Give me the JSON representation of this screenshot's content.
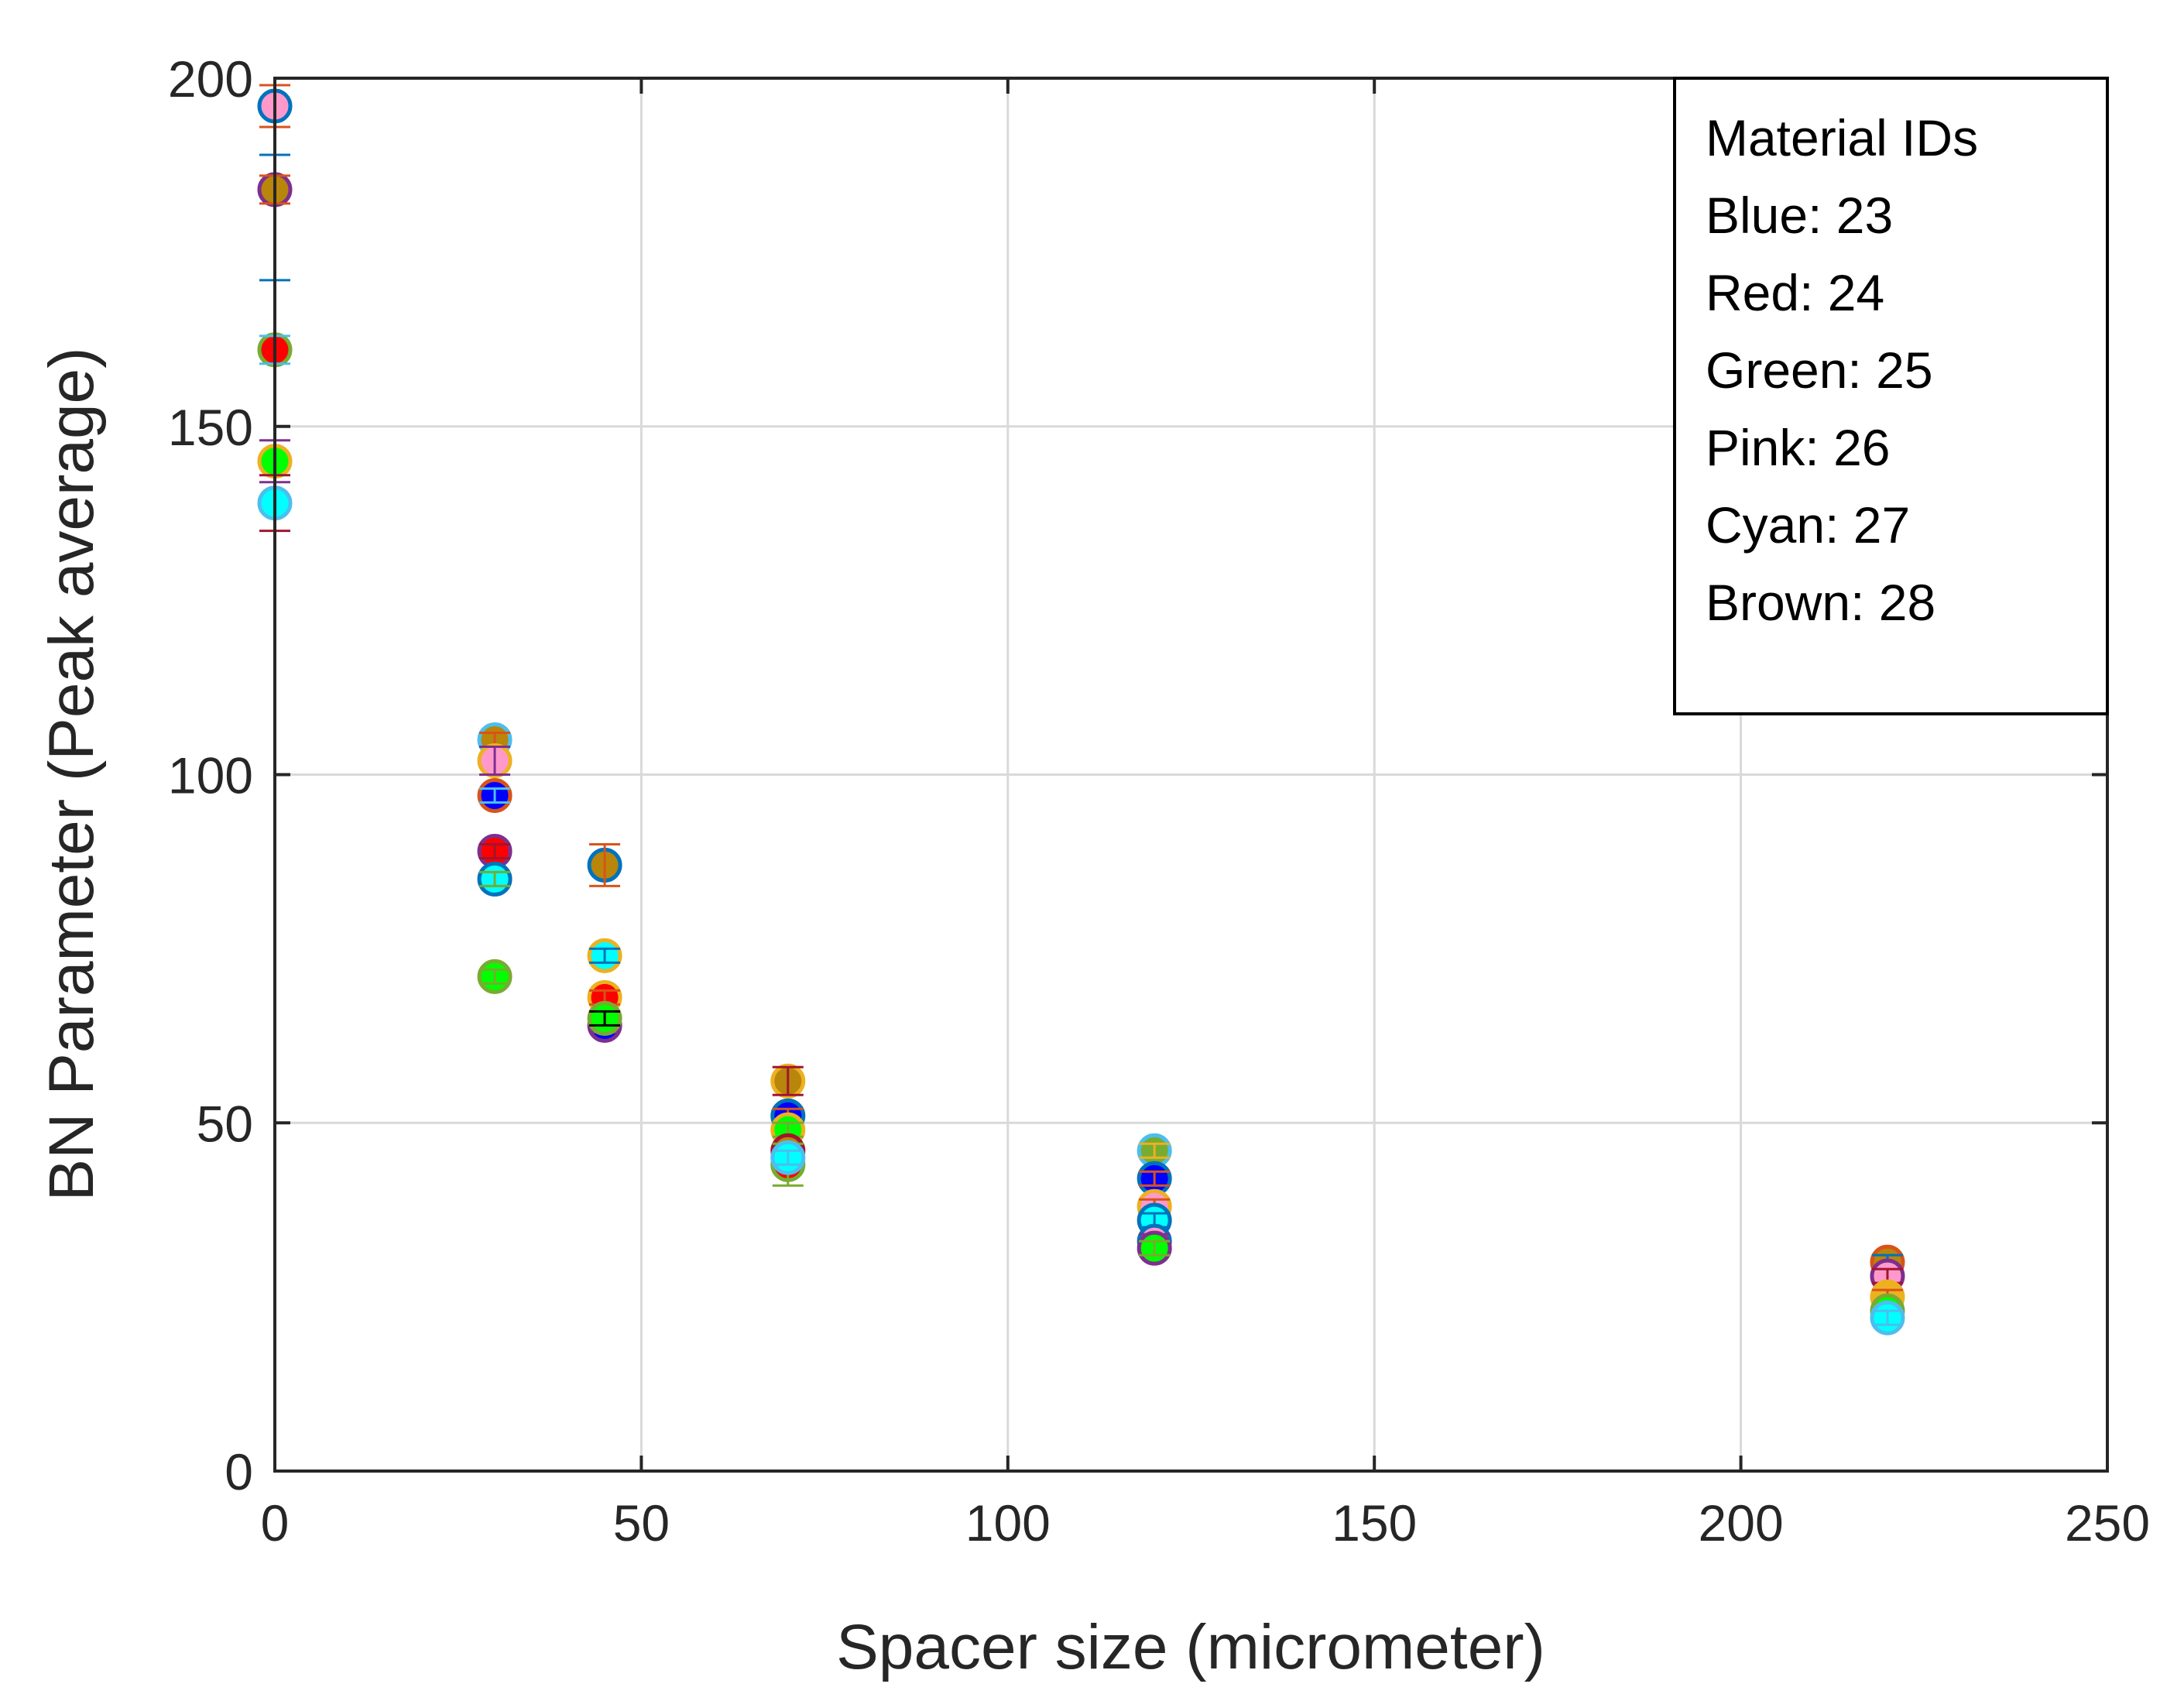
{
  "chart_data": {
    "type": "scatter",
    "title": "",
    "xlabel": "Spacer size (micrometer)",
    "ylabel": "BN Parameter (Peak average)",
    "xlim": [
      0,
      250
    ],
    "ylim": [
      0,
      200
    ],
    "xticks": [
      0,
      50,
      100,
      150,
      200,
      250
    ],
    "yticks": [
      0,
      50,
      100,
      150,
      200
    ],
    "xtick_labels": [
      "0",
      "50",
      "100",
      "150",
      "200",
      "250"
    ],
    "ytick_labels": [
      "0",
      "50",
      "100",
      "150",
      "200"
    ],
    "grid": true,
    "legend_box": {
      "position": "top-right",
      "lines": [
        "Material IDs",
        "Blue: 23",
        "Red: 24",
        "Green: 25",
        "Pink: 26",
        "Cyan: 27",
        "Brown: 28"
      ]
    },
    "points": [
      {
        "x": 0,
        "y": 196,
        "err": 3,
        "fill": "#ff99cc",
        "edge": "#0072bd",
        "bar": "#d95319"
      },
      {
        "x": 0,
        "y": 184,
        "err": 2,
        "fill": "#b8860b",
        "edge": "#7e2f8e",
        "bar": "#d95319"
      },
      {
        "x": 0,
        "y": 180,
        "err": 9,
        "fill": "none",
        "edge": "none",
        "bar": "#0072bd"
      },
      {
        "x": 0,
        "y": 161,
        "err": 2,
        "fill": "#ff0000",
        "edge": "#77ac30",
        "bar": "#4dbeee"
      },
      {
        "x": 0,
        "y": 145,
        "err": 3,
        "fill": "#00ff00",
        "edge": "#edb120",
        "bar": "#7e2f8e"
      },
      {
        "x": 0,
        "y": 139,
        "err": 4,
        "fill": "#00ffff",
        "edge": "#4dbeee",
        "bar": "#a2142f"
      },
      {
        "x": 30,
        "y": 105,
        "err": 1,
        "fill": "#b8860b",
        "edge": "#4dbeee",
        "bar": "#d95319"
      },
      {
        "x": 30,
        "y": 102,
        "err": 2,
        "fill": "#ff99cc",
        "edge": "#edb120",
        "bar": "#7e2f8e"
      },
      {
        "x": 30,
        "y": 97,
        "err": 1,
        "fill": "#0000ff",
        "edge": "#d95319",
        "bar": "#4dbeee"
      },
      {
        "x": 30,
        "y": 89,
        "err": 1,
        "fill": "#ff0000",
        "edge": "#7e2f8e",
        "bar": "#a2142f"
      },
      {
        "x": 30,
        "y": 85,
        "err": 1,
        "fill": "#00ffff",
        "edge": "#0072bd",
        "bar": "#77ac30"
      },
      {
        "x": 30,
        "y": 71,
        "err": 1,
        "fill": "#00ff00",
        "edge": "#77ac30",
        "bar": "#77ac30"
      },
      {
        "x": 45,
        "y": 87,
        "err": 3,
        "fill": "#b8860b",
        "edge": "#0072bd",
        "bar": "#d95319"
      },
      {
        "x": 45,
        "y": 74,
        "err": 1,
        "fill": "#00ffff",
        "edge": "#edb120",
        "bar": "#0072bd"
      },
      {
        "x": 45,
        "y": 68,
        "err": 1,
        "fill": "#ff0000",
        "edge": "#edb120",
        "bar": "#d95319"
      },
      {
        "x": 45,
        "y": 64,
        "err": 1,
        "fill": "#0000ff",
        "edge": "#7e2f8e",
        "bar": "#7e2f8e"
      },
      {
        "x": 45,
        "y": 65,
        "err": 1,
        "fill": "#00ff00",
        "edge": "#77ac30",
        "bar": "#000000"
      },
      {
        "x": 70,
        "y": 56,
        "err": 2,
        "fill": "#b8860b",
        "edge": "#edb120",
        "bar": "#a2142f"
      },
      {
        "x": 70,
        "y": 51,
        "err": 1,
        "fill": "#0000ff",
        "edge": "#0072bd",
        "bar": "#d95319"
      },
      {
        "x": 70,
        "y": 49,
        "err": 1,
        "fill": "#00ff00",
        "edge": "#edb120",
        "bar": "#77ac30"
      },
      {
        "x": 70,
        "y": 46,
        "err": 1,
        "fill": "#b8860b",
        "edge": "#a2142f",
        "bar": "#d95319"
      },
      {
        "x": 70,
        "y": 44,
        "err": 3,
        "fill": "#ff0000",
        "edge": "#77ac30",
        "bar": "#77ac30"
      },
      {
        "x": 70,
        "y": 45,
        "err": 1,
        "fill": "#00ffff",
        "edge": "#4dbeee",
        "bar": "#4dbeee"
      },
      {
        "x": 120,
        "y": 46,
        "err": 1,
        "fill": "#77ac30",
        "edge": "#4dbeee",
        "bar": "#edb120"
      },
      {
        "x": 120,
        "y": 42,
        "err": 1,
        "fill": "#0000ff",
        "edge": "#0072bd",
        "bar": "#d95319"
      },
      {
        "x": 120,
        "y": 38,
        "err": 1,
        "fill": "#ff99cc",
        "edge": "#edb120",
        "bar": "#d95319"
      },
      {
        "x": 120,
        "y": 36,
        "err": 1,
        "fill": "#00ffff",
        "edge": "#0072bd",
        "bar": "#0072bd"
      },
      {
        "x": 120,
        "y": 33,
        "err": 1,
        "fill": "#ff99cc",
        "edge": "#0072bd",
        "bar": "#7e2f8e"
      },
      {
        "x": 120,
        "y": 32,
        "err": 1,
        "fill": "#00ff00",
        "edge": "#7e2f8e",
        "bar": "#77ac30"
      },
      {
        "x": 220,
        "y": 30,
        "err": 1,
        "fill": "#b8860b",
        "edge": "#d95319",
        "bar": "#0072bd"
      },
      {
        "x": 220,
        "y": 28,
        "err": 1,
        "fill": "#ff99cc",
        "edge": "#7e2f8e",
        "bar": "#a2142f"
      },
      {
        "x": 220,
        "y": 25,
        "err": 1,
        "fill": "#edb120",
        "edge": "#edb120",
        "bar": "#d95319"
      },
      {
        "x": 220,
        "y": 23,
        "err": 1,
        "fill": "#00ff00",
        "edge": "#77ac30",
        "bar": "#77ac30"
      },
      {
        "x": 220,
        "y": 22,
        "err": 1,
        "fill": "#00ffff",
        "edge": "#4dbeee",
        "bar": "#4dbeee"
      }
    ]
  }
}
